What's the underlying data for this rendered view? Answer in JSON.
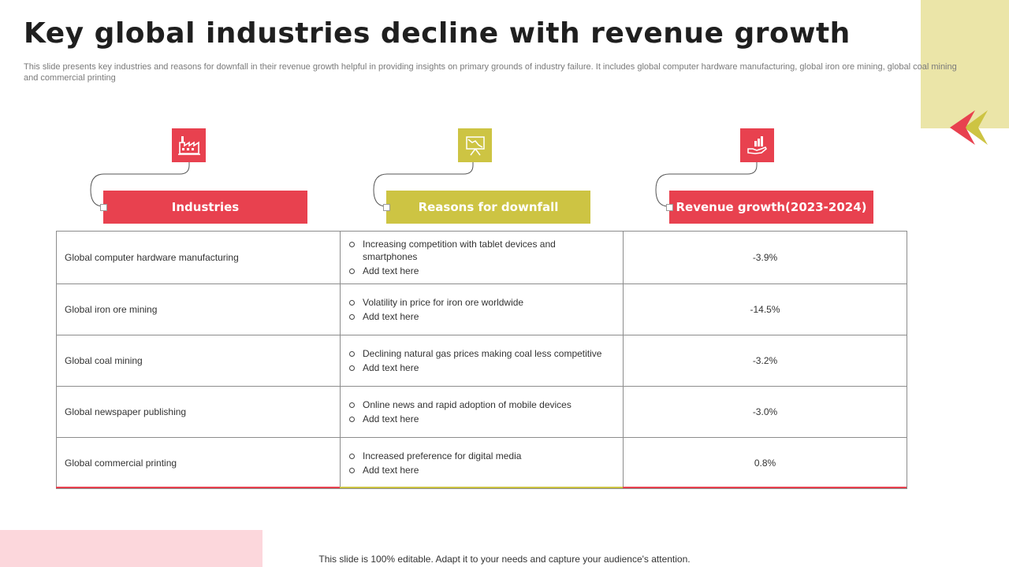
{
  "title": "Key global industries decline with revenue growth",
  "subtitle": "This slide presents key industries and reasons for downfall in their revenue growth helpful in providing insights on primary grounds of industry failure. It includes global computer hardware manufacturing, global iron ore mining, global coal mining and commercial printing",
  "colors": {
    "red": "#e8414f",
    "olive": "#cdc443",
    "pale_yellow": "#ebe5a8",
    "pale_pink": "#fcd7dc"
  },
  "columns": [
    {
      "label": "Industries",
      "icon": "factory-icon"
    },
    {
      "label": "Reasons for downfall",
      "icon": "declining-chart-icon"
    },
    {
      "label": "Revenue growth(2023-2024)",
      "icon": "hand-growth-icon"
    }
  ],
  "rows": [
    {
      "industry": "Global computer hardware  manufacturing",
      "reasons": [
        "Increasing competition with tablet devices and smartphones",
        "Add text here"
      ],
      "growth": "-3.9%"
    },
    {
      "industry": "Global iron ore mining",
      "reasons": [
        "Volatility in price for iron ore worldwide",
        "Add text here"
      ],
      "growth": "-14.5%"
    },
    {
      "industry": "Global coal mining",
      "reasons": [
        "Declining natural gas prices making coal less competitive",
        "Add text here"
      ],
      "growth": "-3.2%"
    },
    {
      "industry": "Global newspaper publishing",
      "reasons": [
        "Online news and rapid adoption of mobile devices",
        "Add text here"
      ],
      "growth": "-3.0%"
    },
    {
      "industry": "Global commercial printing",
      "reasons": [
        "Increased preference for digital media",
        "Add text here"
      ],
      "growth": "0.8%"
    }
  ],
  "footer": "This slide is 100% editable. Adapt it to your needs and capture your audience's attention."
}
